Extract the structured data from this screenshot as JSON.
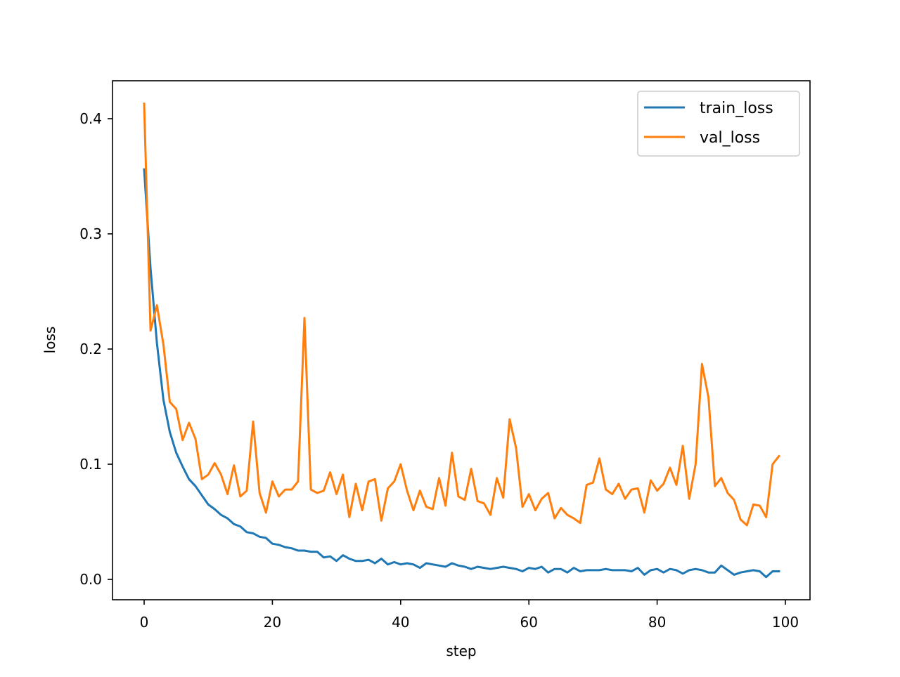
{
  "chart_data": {
    "type": "line",
    "title": "",
    "xlabel": "step",
    "ylabel": "loss",
    "xlim": [
      -5,
      104
    ],
    "ylim": [
      -0.018,
      0.432
    ],
    "xticks": [
      0,
      20,
      40,
      60,
      80,
      100
    ],
    "xtick_labels": [
      "0",
      "20",
      "40",
      "60",
      "80",
      "100"
    ],
    "yticks": [
      0.0,
      0.1,
      0.2,
      0.3,
      0.4
    ],
    "ytick_labels": [
      "0.0",
      "0.1",
      "0.2",
      "0.3",
      "0.4"
    ],
    "grid": false,
    "legend_position": "upper right",
    "x": [
      0,
      1,
      2,
      3,
      4,
      5,
      6,
      7,
      8,
      9,
      10,
      11,
      12,
      13,
      14,
      15,
      16,
      17,
      18,
      19,
      20,
      21,
      22,
      23,
      24,
      25,
      26,
      27,
      28,
      29,
      30,
      31,
      32,
      33,
      34,
      35,
      36,
      37,
      38,
      39,
      40,
      41,
      42,
      43,
      44,
      45,
      46,
      47,
      48,
      49,
      50,
      51,
      52,
      53,
      54,
      55,
      56,
      57,
      58,
      59,
      60,
      61,
      62,
      63,
      64,
      65,
      66,
      67,
      68,
      69,
      70,
      71,
      72,
      73,
      74,
      75,
      76,
      77,
      78,
      79,
      80,
      81,
      82,
      83,
      84,
      85,
      86,
      87,
      88,
      89,
      90,
      91,
      92,
      93,
      94,
      95,
      96,
      97,
      98,
      99
    ],
    "series": [
      {
        "name": "train_loss",
        "color": "#1f77b4",
        "values": [
          0.356,
          0.27,
          0.205,
          0.156,
          0.128,
          0.11,
          0.098,
          0.087,
          0.081,
          0.073,
          0.065,
          0.061,
          0.056,
          0.053,
          0.048,
          0.046,
          0.041,
          0.04,
          0.037,
          0.036,
          0.031,
          0.03,
          0.028,
          0.027,
          0.025,
          0.025,
          0.024,
          0.024,
          0.019,
          0.02,
          0.016,
          0.021,
          0.018,
          0.016,
          0.016,
          0.017,
          0.014,
          0.018,
          0.013,
          0.015,
          0.013,
          0.014,
          0.013,
          0.01,
          0.014,
          0.013,
          0.012,
          0.011,
          0.014,
          0.012,
          0.011,
          0.009,
          0.011,
          0.01,
          0.009,
          0.01,
          0.011,
          0.01,
          0.009,
          0.007,
          0.01,
          0.009,
          0.011,
          0.006,
          0.009,
          0.009,
          0.006,
          0.01,
          0.007,
          0.008,
          0.008,
          0.008,
          0.009,
          0.008,
          0.008,
          0.008,
          0.007,
          0.01,
          0.004,
          0.008,
          0.009,
          0.006,
          0.009,
          0.008,
          0.005,
          0.008,
          0.009,
          0.008,
          0.006,
          0.006,
          0.012,
          0.008,
          0.004,
          0.006,
          0.007,
          0.008,
          0.007,
          0.002,
          0.007,
          0.007
        ]
      },
      {
        "name": "val_loss",
        "color": "#ff7f0e",
        "values": [
          0.413,
          0.216,
          0.238,
          0.204,
          0.154,
          0.148,
          0.121,
          0.136,
          0.122,
          0.087,
          0.091,
          0.101,
          0.091,
          0.074,
          0.099,
          0.072,
          0.077,
          0.137,
          0.075,
          0.058,
          0.085,
          0.072,
          0.078,
          0.078,
          0.085,
          0.227,
          0.078,
          0.075,
          0.077,
          0.093,
          0.074,
          0.091,
          0.054,
          0.083,
          0.06,
          0.085,
          0.087,
          0.051,
          0.079,
          0.085,
          0.1,
          0.077,
          0.06,
          0.077,
          0.063,
          0.061,
          0.088,
          0.064,
          0.11,
          0.072,
          0.069,
          0.096,
          0.068,
          0.066,
          0.056,
          0.088,
          0.071,
          0.139,
          0.114,
          0.063,
          0.074,
          0.06,
          0.07,
          0.075,
          0.053,
          0.062,
          0.056,
          0.053,
          0.049,
          0.082,
          0.084,
          0.105,
          0.078,
          0.074,
          0.083,
          0.07,
          0.078,
          0.079,
          0.058,
          0.086,
          0.077,
          0.083,
          0.097,
          0.082,
          0.116,
          0.07,
          0.1,
          0.187,
          0.158,
          0.081,
          0.088,
          0.075,
          0.069,
          0.052,
          0.047,
          0.065,
          0.064,
          0.054,
          0.1,
          0.107
        ]
      }
    ]
  },
  "legend": {
    "items": [
      {
        "label": "train_loss",
        "color": "#1f77b4"
      },
      {
        "label": "val_loss",
        "color": "#ff7f0e"
      }
    ]
  },
  "axes": {
    "xlabel": "step",
    "ylabel": "loss"
  }
}
